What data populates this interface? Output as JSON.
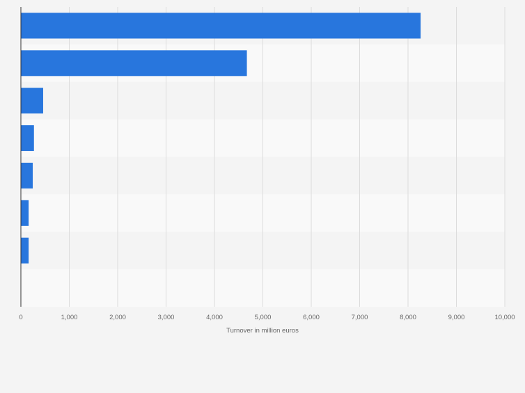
{
  "chart_data": {
    "type": "bar",
    "orientation": "horizontal",
    "title": "",
    "xlabel": "Turnover in million euros",
    "ylabel": "",
    "categories": [
      "",
      "",
      "",
      "",
      "",
      "",
      "",
      ""
    ],
    "values": [
      8260,
      4670,
      460,
      270,
      245,
      160,
      160,
      null
    ],
    "xlim": [
      0,
      10000
    ],
    "x_ticks": [
      0,
      1000,
      2000,
      3000,
      4000,
      5000,
      6000,
      7000,
      8000,
      9000,
      10000
    ],
    "x_tick_labels": [
      "0",
      "1,000",
      "2,000",
      "3,000",
      "4,000",
      "5,000",
      "6,000",
      "7,000",
      "8,000",
      "9,000",
      "10,000"
    ],
    "grid": "vertical",
    "legend": "none",
    "bar_color": "#2876dd",
    "stripe_colors": [
      "#f4f4f4",
      "#f9f9f9"
    ],
    "gridline_color": "#dcdcdc"
  }
}
